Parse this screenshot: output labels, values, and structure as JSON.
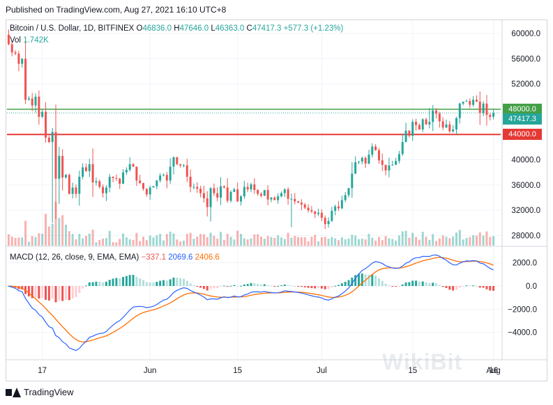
{
  "header": {
    "published": "Published on TradingView.com, Aug 27, 2021 16:10 UTC+8"
  },
  "legend": {
    "symbol": "Bitcoin / U.S. Dollar, 1D, BITFINEX",
    "o_label": "O",
    "o_value": "46836.0",
    "h_label": "H",
    "h_value": "47646.0",
    "l_label": "L",
    "l_value": "46363.0",
    "c_label": "C",
    "c_value": "47417.3",
    "change": "+577.3 (+1.23%)",
    "vol_label": "Vol",
    "vol_value": "1.742K"
  },
  "macd_legend": {
    "label": "MACD (12, 26, close, 9, EMA, EMA)",
    "hist": "−337.1",
    "macd": "2069.6",
    "signal": "2406.6"
  },
  "price_tags": {
    "resistance": "48000.0",
    "last": "47417.3",
    "support": "44000.0"
  },
  "footer": {
    "brand": "TradingView"
  },
  "watermark": "WikiBit",
  "colors": {
    "up": "#26a69a",
    "down": "#ef5350",
    "macd": "#2962ff",
    "signal": "#ff6d00",
    "resistance": "#43a047",
    "support": "#e53935"
  },
  "chart_data": [
    {
      "type": "candlestick",
      "title": "Bitcoin / U.S. Dollar, 1D, BITFINEX",
      "x_ticks": [
        "17",
        "Jun",
        "15",
        "Jul",
        "15",
        "Aug",
        "16"
      ],
      "y_ticks": [
        "60000.0",
        "56000.0",
        "52000.0",
        "48000.0",
        "44000.0",
        "40000.0",
        "36000.0",
        "32000.0",
        "28000.0"
      ],
      "ylim": [
        26500,
        62000
      ],
      "horizontal_lines": [
        48000,
        44000
      ],
      "last_price": 47417.3,
      "close_series": [
        58300,
        57000,
        56800,
        55200,
        56000,
        49500,
        49700,
        48600,
        50000,
        46800,
        47600,
        43500,
        42800,
        44400,
        37000,
        40600,
        37200,
        37600,
        34600,
        35600,
        34600,
        37300,
        38800,
        38200,
        39300,
        36400,
        36600,
        35700,
        34700,
        35600,
        37300,
        37100,
        37000,
        36200,
        38000,
        38400,
        39300,
        38900,
        36700,
        36300,
        35400,
        34500,
        35600,
        35800,
        36700,
        37500,
        37600,
        36700,
        38900,
        40400,
        39300,
        39100,
        39100,
        37300,
        35700,
        35700,
        35400,
        34700,
        33900,
        32500,
        35500,
        34700,
        34000,
        35800,
        35600,
        33500,
        34900,
        35300,
        33400,
        34200,
        35700,
        35300,
        36100,
        35200,
        34600,
        34300,
        35200,
        33700,
        34000,
        33600,
        34200,
        34700,
        35300,
        33800,
        33800,
        33400,
        33200,
        32900,
        32400,
        32000,
        31800,
        31400,
        31600,
        30800,
        29800,
        30300,
        31900,
        32600,
        32300,
        33600,
        34400,
        35500,
        37800,
        39600,
        39700,
        40300,
        39400,
        40800,
        42100,
        41500,
        39900,
        39200,
        38300,
        39100,
        39200,
        39800,
        40900,
        42800,
        44600,
        43800,
        46000,
        45500,
        44800,
        46400,
        45600,
        46000,
        47800,
        47300,
        46100,
        45100,
        45600,
        44500,
        44800,
        46600,
        48900,
        49200,
        49300,
        48700,
        49500,
        49200,
        47400,
        48900,
        47100,
        46800,
        47400
      ],
      "series": [
        {
          "name": "",
          "values_note": "daily closes above"
        }
      ]
    },
    {
      "type": "line",
      "title": "MACD (12, 26, close, 9, EMA, EMA)",
      "y_ticks": [
        "2000.0",
        "0.0",
        "−2000.0",
        "−4000.0"
      ],
      "ylim": [
        -6300,
        3300
      ],
      "series": [
        {
          "name": "MACD",
          "last": 2069.6
        },
        {
          "name": "Signal",
          "last": 2406.6
        },
        {
          "name": "Histogram",
          "last": -337.1
        }
      ]
    }
  ]
}
